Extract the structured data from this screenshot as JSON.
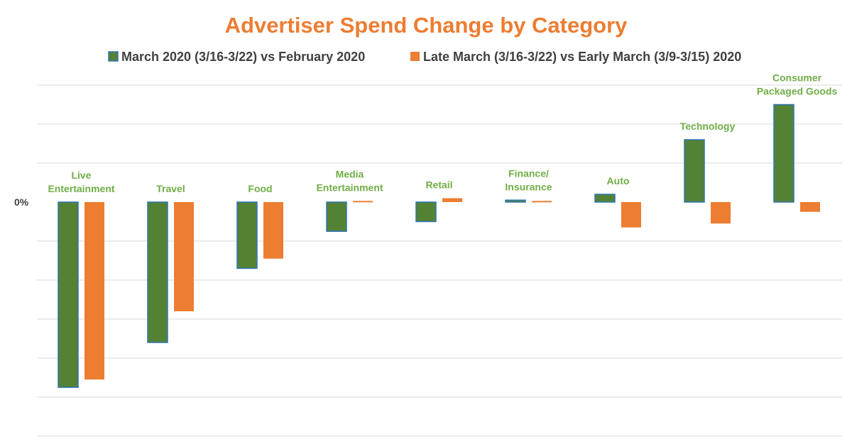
{
  "chart_data": {
    "type": "bar",
    "title": "Advertiser Spend Change by Category",
    "xlabel": "",
    "ylabel": "",
    "y_tick_labels": [
      "0%"
    ],
    "categories": [
      "Live Entertainment",
      "Travel",
      "Food",
      "Media Entertainment",
      "Retail",
      "Finance/ Insurance",
      "Auto",
      "Technology",
      "Consumer Packaged Goods"
    ],
    "category_label_lines": [
      [
        "Live",
        "Entertainment"
      ],
      [
        "Travel"
      ],
      [
        "Food"
      ],
      [
        "Media",
        "Entertainment"
      ],
      [
        "Retail"
      ],
      [
        "Finance/",
        "Insurance"
      ],
      [
        "Auto"
      ],
      [
        "Technology"
      ],
      [
        "Consumer",
        "Packaged Goods"
      ]
    ],
    "series": [
      {
        "name": "March 2020 (3/16-3/22) vs February 2020",
        "color": "#548235",
        "border_color": "#2E75B6",
        "values": [
          -4.75,
          -3.6,
          -1.7,
          -0.75,
          -0.5,
          0.05,
          0.2,
          1.6,
          2.5
        ]
      },
      {
        "name": "Late March (3/16-3/22) vs Early March (3/9-3/15) 2020",
        "color": "#ED7D31",
        "border_color": "#ED7D31",
        "values": [
          -4.55,
          -2.8,
          -1.45,
          0.03,
          0.1,
          0.03,
          -0.65,
          -0.55,
          -0.25
        ]
      }
    ],
    "ylim": [
      -6,
      3
    ],
    "grid": true,
    "legend_position": "top",
    "colors": {
      "title": "#ED7D31",
      "category_label": "#70AD47",
      "gridline": "#D9D9D9",
      "text": "#404040"
    }
  }
}
